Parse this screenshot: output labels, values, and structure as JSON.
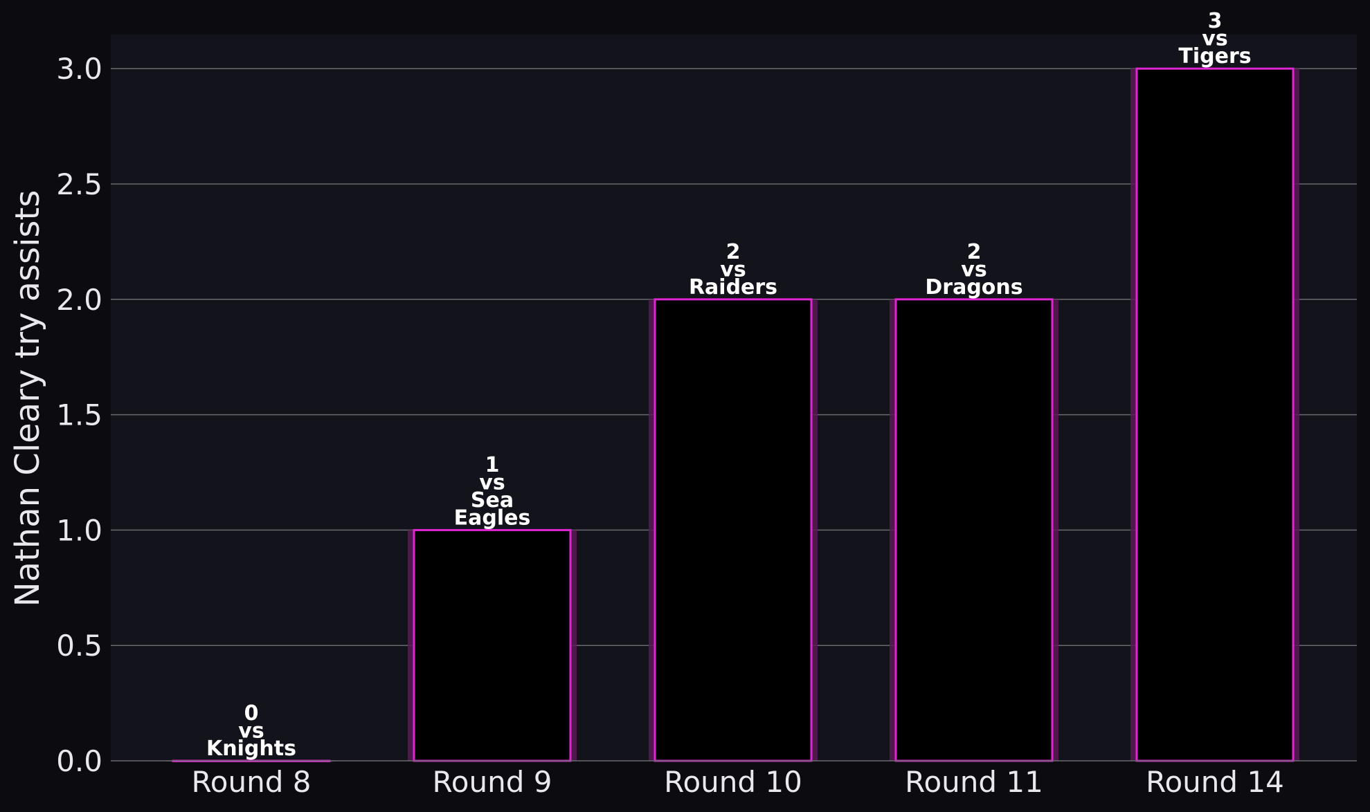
{
  "chart_data": {
    "type": "bar",
    "categories": [
      "Round 8",
      "Round 9",
      "Round 10",
      "Round 11",
      "Round 14"
    ],
    "values": [
      0,
      1,
      2,
      2,
      3
    ],
    "opponents": [
      "Knights",
      "Sea Eagles",
      "Raiders",
      "Dragons",
      "Tigers"
    ],
    "bar_labels": [
      [
        "0",
        "vs",
        "Knights"
      ],
      [
        "1",
        "vs",
        "Sea",
        "Eagles"
      ],
      [
        "2",
        "vs",
        "Raiders"
      ],
      [
        "2",
        "vs",
        "Dragons"
      ],
      [
        "3",
        "vs",
        "Tigers"
      ]
    ],
    "title": "",
    "xlabel": "",
    "ylabel": "Nathan Cleary try assists",
    "ylim": [
      0,
      3.15
    ],
    "yticks": [
      "0.0",
      "0.5",
      "1.0",
      "1.5",
      "2.0",
      "2.5",
      "3.0"
    ],
    "grid": "horizontal",
    "colors": {
      "page_background": "#0c0c10",
      "plot_background": "#13131b",
      "bar_fill": "#000000",
      "bar_edge": "#e026d3",
      "bar_glow": "#5a1a55",
      "grid": "#6a6a70",
      "text": "#e8e8ee"
    }
  }
}
